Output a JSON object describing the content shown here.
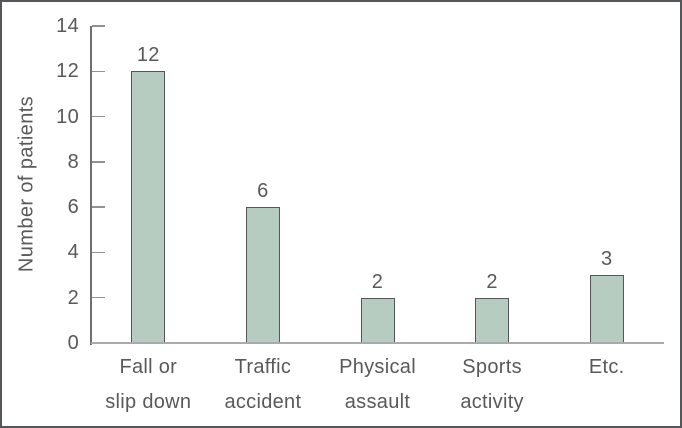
{
  "chart_data": {
    "type": "bar",
    "title": "",
    "xlabel": "",
    "ylabel": "Number of patients",
    "categories": [
      "Fall or slip down",
      "Traffic accident",
      "Physical assault",
      "Sports activity",
      "Etc."
    ],
    "category_lines": [
      [
        "Fall or",
        "slip down"
      ],
      [
        "Traffic",
        "accident"
      ],
      [
        "Physical",
        "assault"
      ],
      [
        "Sports",
        "activity"
      ],
      [
        "Etc."
      ]
    ],
    "values": [
      12,
      6,
      2,
      2,
      3
    ],
    "bar_labels": [
      "12",
      "6",
      "2",
      "2",
      "3"
    ],
    "ylim": [
      0,
      14
    ],
    "yticks": [
      0,
      2,
      4,
      6,
      8,
      10,
      12,
      14
    ],
    "grid": false,
    "legend_position": "none",
    "colors": {
      "background": "#ffffff",
      "frame_border": "#55565a",
      "bar_fill": "#b7ccc1",
      "bar_border": "#55565a",
      "y_axis": "#6e6f72",
      "x_baseline": "#a8aaad",
      "tick": "#909295",
      "text": "#58595b"
    }
  }
}
